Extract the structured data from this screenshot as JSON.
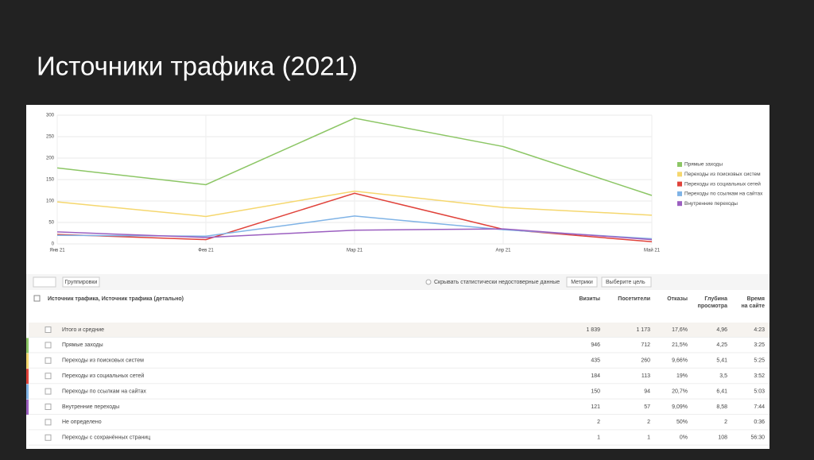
{
  "title": "Источники трафика (2021)",
  "chart_data": {
    "type": "line",
    "categories": [
      "Янв 21",
      "Фев 21",
      "Мар 21",
      "Апр 21",
      "Май 21"
    ],
    "ylim": [
      0,
      300
    ],
    "yticks": [
      0,
      50,
      100,
      150,
      200,
      250,
      300
    ],
    "grid": true,
    "series": [
      {
        "name": "Прямые заходы",
        "color": "#8cc665",
        "values": [
          177,
          138,
          293,
          227,
          113
        ]
      },
      {
        "name": "Переходы из поисковых систем",
        "color": "#f5d76e",
        "values": [
          98,
          64,
          123,
          85,
          67
        ]
      },
      {
        "name": "Переходы из социальных сетей",
        "color": "#e0423a",
        "values": [
          22,
          10,
          118,
          34,
          5
        ]
      },
      {
        "name": "Переходы по ссылкам на сайтах",
        "color": "#7fb3e6",
        "values": [
          20,
          18,
          65,
          33,
          12
        ]
      },
      {
        "name": "Внутренние переходы",
        "color": "#9b5fc0",
        "values": [
          28,
          15,
          32,
          35,
          10
        ]
      }
    ]
  },
  "toolbar": {
    "grouping": "Группировки",
    "hide": "Скрывать статистически недостоверные данные",
    "metrics": "Метрики",
    "goal": "Выберите цель"
  },
  "table": {
    "columns": [
      "Источник трафика, Источник трафика (детально)",
      "Визиты",
      "Посетители",
      "Отказы",
      "Глубина просмотра",
      "Время на сайте"
    ],
    "rows": [
      [
        "Итого и средние",
        "1 839",
        "1 173",
        "17,6%",
        "4,96",
        "4:23"
      ],
      [
        "Прямые заходы",
        "946",
        "712",
        "21,5%",
        "4,25",
        "3:25"
      ],
      [
        "Переходы из поисковых систем",
        "435",
        "260",
        "9,66%",
        "5,41",
        "5:25"
      ],
      [
        "Переходы из социальных сетей",
        "184",
        "113",
        "19%",
        "3,5",
        "3:52"
      ],
      [
        "Переходы по ссылкам на сайтах",
        "150",
        "94",
        "20,7%",
        "6,41",
        "5:03"
      ],
      [
        "Внутренние переходы",
        "121",
        "57",
        "9,09%",
        "8,58",
        "7:44"
      ],
      [
        "Не определено",
        "2",
        "2",
        "50%",
        "2",
        "0:36"
      ],
      [
        "Переходы с сохранённых страниц",
        "1",
        "1",
        "0%",
        "108",
        "56:30"
      ]
    ]
  }
}
